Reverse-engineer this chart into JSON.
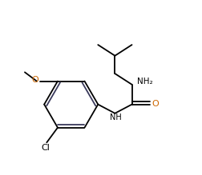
{
  "background_color": "#ffffff",
  "line_color": "#000000",
  "bond_color": "#3a3a5c",
  "text_color_black": "#000000",
  "text_color_orange": "#cc6600",
  "label_NH2": "NH₂",
  "label_NH": "NH",
  "label_O": "O",
  "label_Cl": "Cl",
  "label_O_methoxy": "O",
  "figsize": [
    2.52,
    2.19
  ],
  "dpi": 100
}
